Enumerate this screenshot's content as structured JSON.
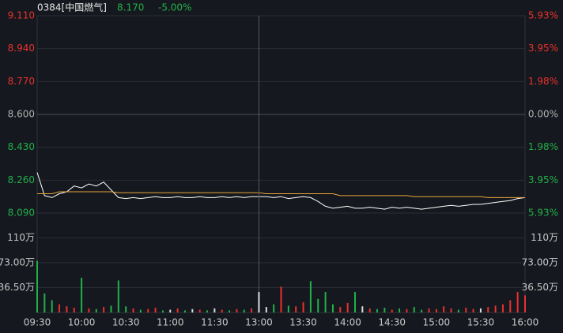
{
  "header": {
    "name": "0384[中国燃气]",
    "price": "8.170",
    "change": "-5.00%"
  },
  "chart_data": [
    {
      "type": "line",
      "x": [
        0,
        5,
        10,
        15,
        20,
        25,
        30,
        35,
        40,
        45,
        50,
        55,
        60,
        65,
        70,
        75,
        80,
        85,
        90,
        95,
        100,
        105,
        110,
        115,
        120,
        125,
        130,
        135,
        140,
        145,
        150,
        155,
        160,
        165,
        170,
        175,
        180,
        185,
        190,
        195,
        200,
        205,
        210,
        215,
        220,
        225,
        230,
        235,
        240,
        245,
        250,
        255,
        260,
        265,
        270,
        275,
        280,
        285,
        290,
        295,
        300,
        305,
        310,
        315,
        320,
        325,
        330
      ],
      "series": [
        {
          "color": "#ffffff",
          "values": [
            8.3,
            8.18,
            8.17,
            8.19,
            8.2,
            8.23,
            8.22,
            8.24,
            8.23,
            8.25,
            8.21,
            8.17,
            8.165,
            8.17,
            8.165,
            8.17,
            8.175,
            8.17,
            8.17,
            8.175,
            8.17,
            8.17,
            8.175,
            8.17,
            8.17,
            8.175,
            8.17,
            8.175,
            8.17,
            8.175,
            8.175,
            8.175,
            8.17,
            8.175,
            8.165,
            8.17,
            8.175,
            8.17,
            8.15,
            8.125,
            8.115,
            8.12,
            8.125,
            8.115,
            8.115,
            8.12,
            8.115,
            8.11,
            8.12,
            8.115,
            8.12,
            8.115,
            8.11,
            8.115,
            8.12,
            8.125,
            8.13,
            8.125,
            8.13,
            8.135,
            8.135,
            8.14,
            8.145,
            8.15,
            8.155,
            8.165,
            8.17
          ]
        },
        {
          "color": "#e8a63a",
          "values": [
            8.19,
            8.19,
            8.19,
            8.2,
            8.2,
            8.2,
            8.2,
            8.2,
            8.2,
            8.2,
            8.2,
            8.195,
            8.195,
            8.195,
            8.195,
            8.195,
            8.195,
            8.195,
            8.195,
            8.195,
            8.195,
            8.195,
            8.195,
            8.195,
            8.195,
            8.195,
            8.195,
            8.195,
            8.195,
            8.195,
            8.195,
            8.19,
            8.19,
            8.19,
            8.19,
            8.19,
            8.19,
            8.19,
            8.19,
            8.19,
            8.19,
            8.18,
            8.18,
            8.18,
            8.18,
            8.18,
            8.18,
            8.18,
            8.18,
            8.18,
            8.18,
            8.175,
            8.175,
            8.175,
            8.175,
            8.175,
            8.175,
            8.175,
            8.175,
            8.175,
            8.175,
            8.17,
            8.17,
            8.17,
            8.17,
            8.17,
            8.17
          ]
        }
      ],
      "xlim": [
        0,
        330
      ],
      "ylim": [
        8.09,
        9.11
      ],
      "yticks": [
        {
          "value": 9.11,
          "label": "9.110"
        },
        {
          "value": 8.94,
          "label": "8.940"
        },
        {
          "value": 8.77,
          "label": "8.770"
        },
        {
          "value": 8.6,
          "label": "8.600"
        },
        {
          "value": 8.43,
          "label": "8.430"
        },
        {
          "value": 8.26,
          "label": "8.260"
        },
        {
          "value": 8.09,
          "label": "8.090"
        }
      ],
      "y2lim": [
        -5.93,
        5.93
      ],
      "y2ticks": [
        {
          "value": 5.93,
          "label": "5.93%"
        },
        {
          "value": 3.95,
          "label": "3.95%"
        },
        {
          "value": 1.98,
          "label": "1.98%"
        },
        {
          "value": 0,
          "label": "0.00%"
        },
        {
          "value": -1.98,
          "label": "1.98%"
        },
        {
          "value": -3.95,
          "label": "3.95%"
        },
        {
          "value": -5.93,
          "label": "5.93%"
        }
      ],
      "grid": true
    },
    {
      "type": "bar",
      "x": [
        0,
        5,
        10,
        15,
        20,
        25,
        30,
        35,
        40,
        45,
        50,
        55,
        60,
        65,
        70,
        75,
        80,
        85,
        90,
        95,
        100,
        105,
        110,
        115,
        120,
        125,
        130,
        135,
        140,
        145,
        150,
        155,
        160,
        165,
        170,
        175,
        180,
        185,
        190,
        195,
        200,
        205,
        210,
        215,
        220,
        225,
        230,
        235,
        240,
        245,
        250,
        255,
        260,
        265,
        270,
        275,
        280,
        285,
        290,
        295,
        300,
        305,
        310,
        315,
        320,
        325,
        330
      ],
      "values": [
        76,
        28,
        18,
        12,
        9,
        7,
        51,
        6,
        5,
        8,
        10,
        47,
        9,
        6,
        4,
        5,
        7,
        3,
        4,
        6,
        3,
        5,
        4,
        3,
        6,
        4,
        3,
        5,
        4,
        6,
        30,
        8,
        12,
        38,
        10,
        9,
        15,
        46,
        20,
        30,
        12,
        8,
        14,
        30,
        9,
        6,
        5,
        7,
        4,
        6,
        5,
        8,
        4,
        6,
        5,
        9,
        6,
        4,
        7,
        5,
        6,
        8,
        10,
        12,
        18,
        30,
        25
      ],
      "up_color": "#e8322e",
      "down_color": "#22b04a",
      "flat_color": "#dddddd",
      "xlim": [
        0,
        330
      ],
      "xticks": [
        {
          "value": 0,
          "label": "09:30"
        },
        {
          "value": 30,
          "label": "10:00"
        },
        {
          "value": 60,
          "label": "10:30"
        },
        {
          "value": 90,
          "label": "11:00"
        },
        {
          "value": 120,
          "label": "11:30"
        },
        {
          "value": 150,
          "label": "13:00"
        },
        {
          "value": 180,
          "label": "13:30"
        },
        {
          "value": 210,
          "label": "14:00"
        },
        {
          "value": 240,
          "label": "14:30"
        },
        {
          "value": 270,
          "label": "15:00"
        },
        {
          "value": 300,
          "label": "15:30"
        },
        {
          "value": 330,
          "label": "16:00"
        }
      ],
      "ylim": [
        0,
        146
      ],
      "yticks": [
        {
          "value": 109.5,
          "label": "110万"
        },
        {
          "value": 73,
          "label": "73.00万"
        },
        {
          "value": 36.5,
          "label": "36.50万"
        }
      ],
      "grid": true
    }
  ]
}
